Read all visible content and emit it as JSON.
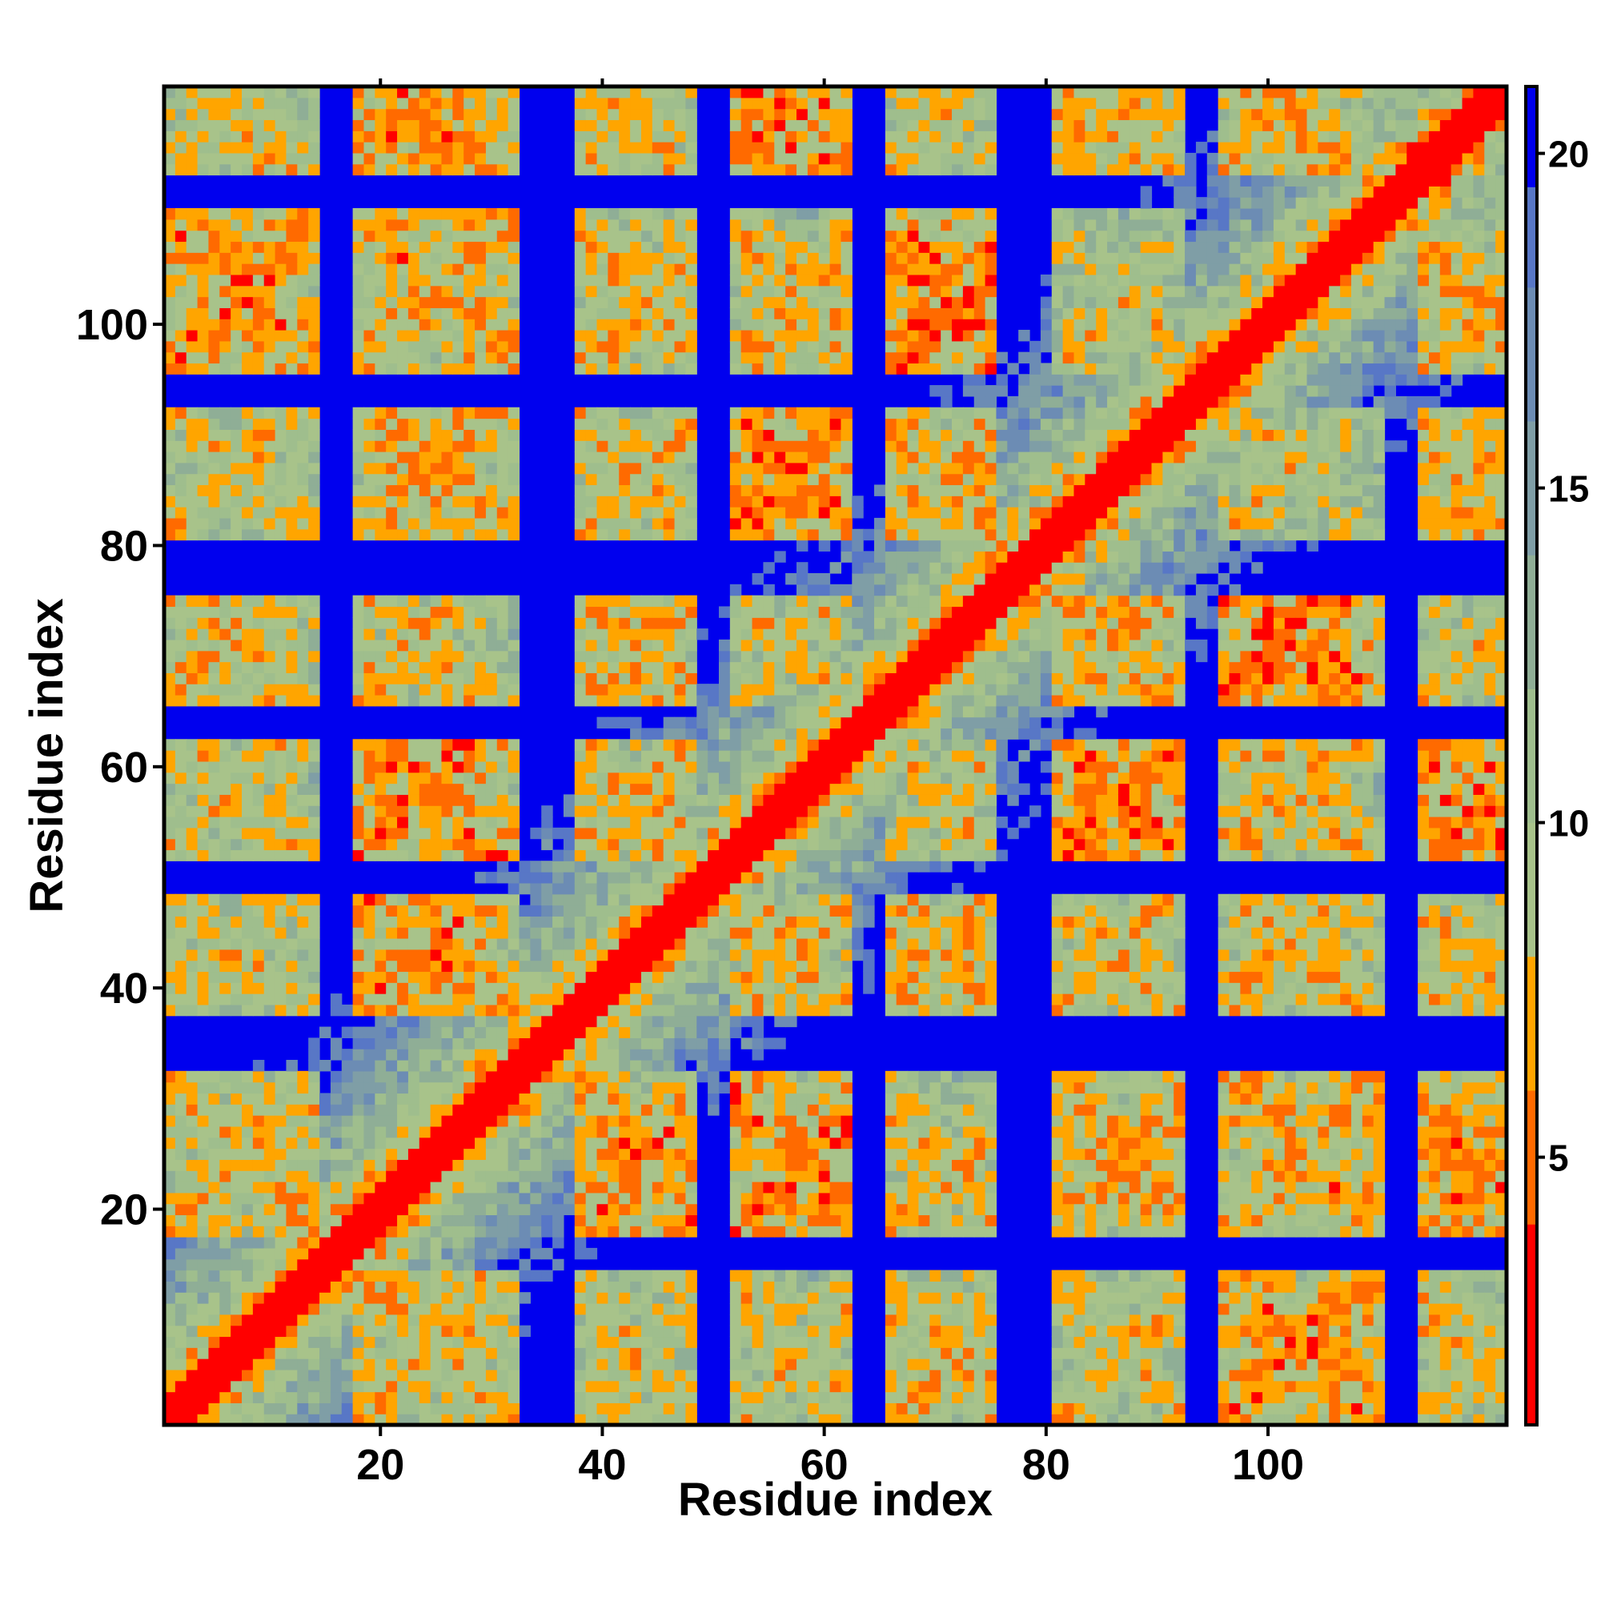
{
  "chart_data": {
    "type": "heatmap",
    "title": "",
    "xlabel": "Residue index",
    "ylabel": "Residue index",
    "xlim": [
      1,
      121
    ],
    "ylim": [
      1,
      121
    ],
    "x_ticks": [
      20,
      40,
      60,
      80,
      100
    ],
    "y_ticks": [
      20,
      40,
      60,
      80,
      100
    ],
    "x_tick_labels": [
      "20",
      "40",
      "60",
      "80",
      "100"
    ],
    "y_tick_labels": [
      "20",
      "40",
      "60",
      "80",
      "100"
    ],
    "n_residues": 121,
    "value_range": [
      1,
      21
    ],
    "cap_value": 20,
    "colorbar": {
      "ticks": [
        5,
        10,
        15,
        20
      ],
      "tick_labels": [
        "5",
        "10",
        "15",
        "20"
      ],
      "colors": [
        {
          "max": 4,
          "color": "#ff0000"
        },
        {
          "max": 6,
          "color": "#ff6a00"
        },
        {
          "max": 8,
          "color": "#ffa500"
        },
        {
          "max": 10,
          "color": "#a8c38a"
        },
        {
          "max": 12,
          "color": "#9fbe8d"
        },
        {
          "max": 14,
          "color": "#8fae96"
        },
        {
          "max": 16,
          "color": "#7f9ea6"
        },
        {
          "max": 18,
          "color": "#6c8cb4"
        },
        {
          "max": 19.5,
          "color": "#5877c6"
        },
        {
          "max": 100,
          "color": "#0000ee"
        }
      ]
    },
    "segments": [
      [
        1,
        14
      ],
      [
        18,
        32
      ],
      [
        38,
        48
      ],
      [
        52,
        62
      ],
      [
        66,
        75
      ],
      [
        81,
        92
      ],
      [
        96,
        110
      ],
      [
        114,
        121
      ]
    ]
  }
}
